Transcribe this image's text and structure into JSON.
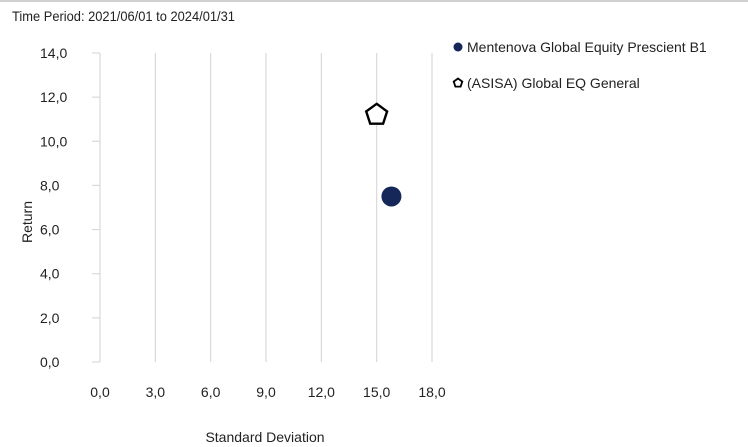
{
  "header": {
    "period_label": "Time Period: 2021/06/01 to 2024/01/31"
  },
  "chart_data": {
    "type": "scatter",
    "xlabel": "Standard Deviation",
    "ylabel": "Return",
    "xlim": [
      0,
      18
    ],
    "ylim": [
      0,
      14
    ],
    "x_ticks": [
      "0,0",
      "3,0",
      "6,0",
      "9,0",
      "12,0",
      "15,0",
      "18,0"
    ],
    "y_ticks": [
      "0,0",
      "2,0",
      "4,0",
      "6,0",
      "8,0",
      "10,0",
      "12,0",
      "14,0"
    ],
    "grid": "vertical",
    "legend_position": "top-right",
    "series": [
      {
        "name": "Mentenova Global Equity Prescient B1",
        "marker": "circle",
        "color": "#152659",
        "x": 15.8,
        "y": 7.5
      },
      {
        "name": "(ASISA) Global EQ General",
        "marker": "pentagon",
        "color": "#000000",
        "x": 15.0,
        "y": 11.2
      }
    ]
  }
}
